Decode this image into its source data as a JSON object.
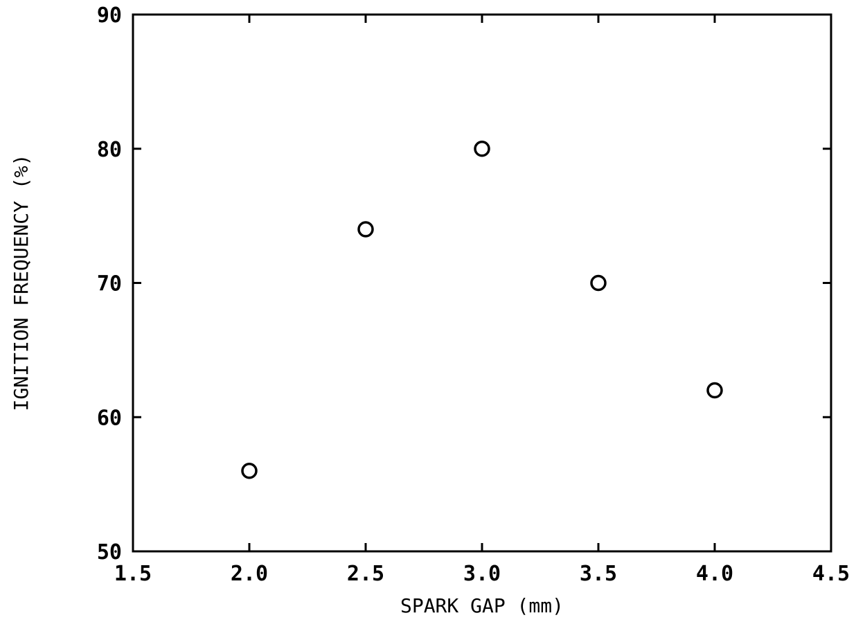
{
  "chart_data": {
    "type": "scatter",
    "title": "",
    "xlabel": "SPARK GAP (mm)",
    "ylabel": "IGNITION FREQUENCY (%)",
    "xlim": [
      1.5,
      4.5
    ],
    "ylim": [
      50,
      90
    ],
    "xticks": [
      1.5,
      2.0,
      2.5,
      3.0,
      3.5,
      4.0,
      4.5
    ],
    "yticks": [
      50,
      60,
      70,
      80,
      90
    ],
    "xtick_labels": [
      "1.5",
      "2.0",
      "2.5",
      "3.0",
      "3.5",
      "4.0",
      "4.5"
    ],
    "ytick_labels": [
      "50",
      "60",
      "70",
      "80",
      "90"
    ],
    "grid": false,
    "marker": "open-circle",
    "series": [
      {
        "x": [
          2.0,
          2.5,
          3.0,
          3.5,
          4.0
        ],
        "y": [
          56,
          74,
          80,
          70,
          62
        ]
      }
    ]
  }
}
